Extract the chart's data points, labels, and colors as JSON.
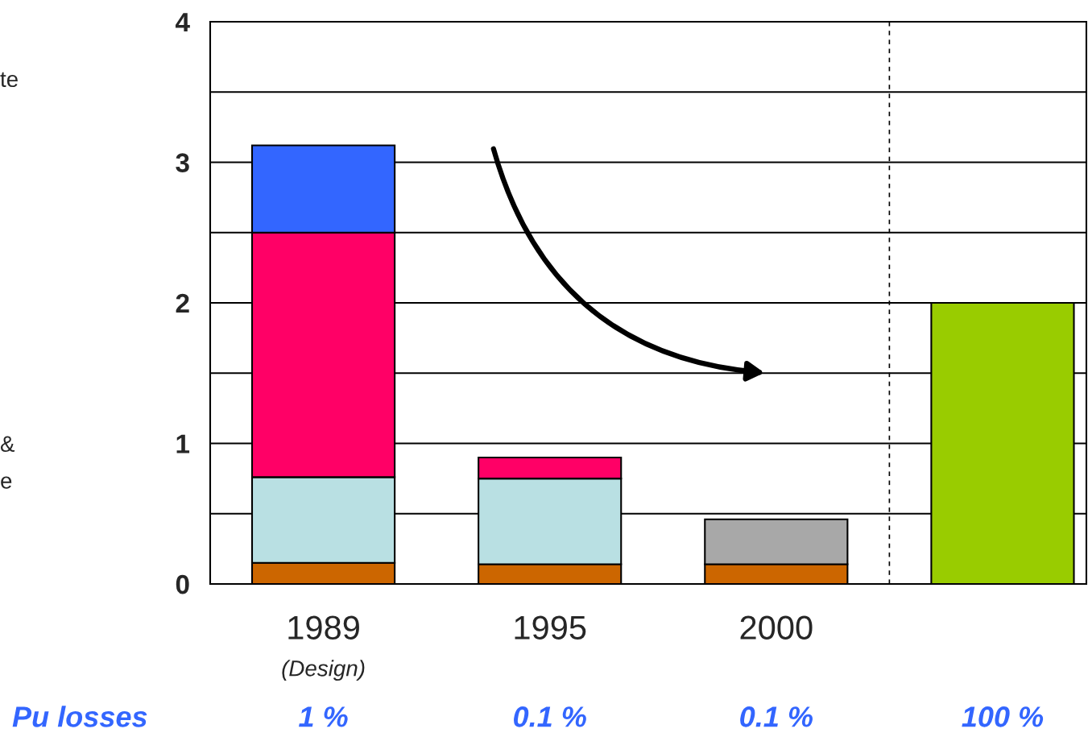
{
  "chart_data": {
    "type": "bar",
    "stacked": true,
    "categories": [
      "1989\n(Design)",
      "1995",
      "2000",
      null
    ],
    "series": [
      {
        "color": "#cc6600",
        "values": [
          0.15,
          0.14,
          0.14,
          null
        ]
      },
      {
        "color": "#b9e0e3",
        "values": [
          0.61,
          0.61,
          null,
          null
        ]
      },
      {
        "color": "#ff0066",
        "values": [
          1.74,
          0.15,
          null,
          null
        ]
      },
      {
        "color": "#3366ff",
        "values": [
          0.62,
          null,
          null,
          null
        ]
      },
      {
        "color": "#a8a8a8",
        "values": [
          null,
          null,
          0.32,
          null
        ]
      },
      {
        "color": "#99cc00",
        "values": [
          null,
          null,
          null,
          2.0
        ]
      }
    ],
    "ylim": [
      0,
      4
    ],
    "yticks": [
      0,
      {
        "value": 0.5,
        "label": null
      },
      1,
      {
        "value": 1.5,
        "label": null
      },
      2,
      {
        "value": 2.5,
        "label": null
      },
      3,
      {
        "value": 3.5,
        "label": null
      },
      4
    ],
    "grid": "y",
    "annotations": [
      "te",
      "&",
      "e",
      "Pu losses",
      "1 %",
      "0.1 %",
      "0.1 %",
      "100 %"
    ]
  }
}
